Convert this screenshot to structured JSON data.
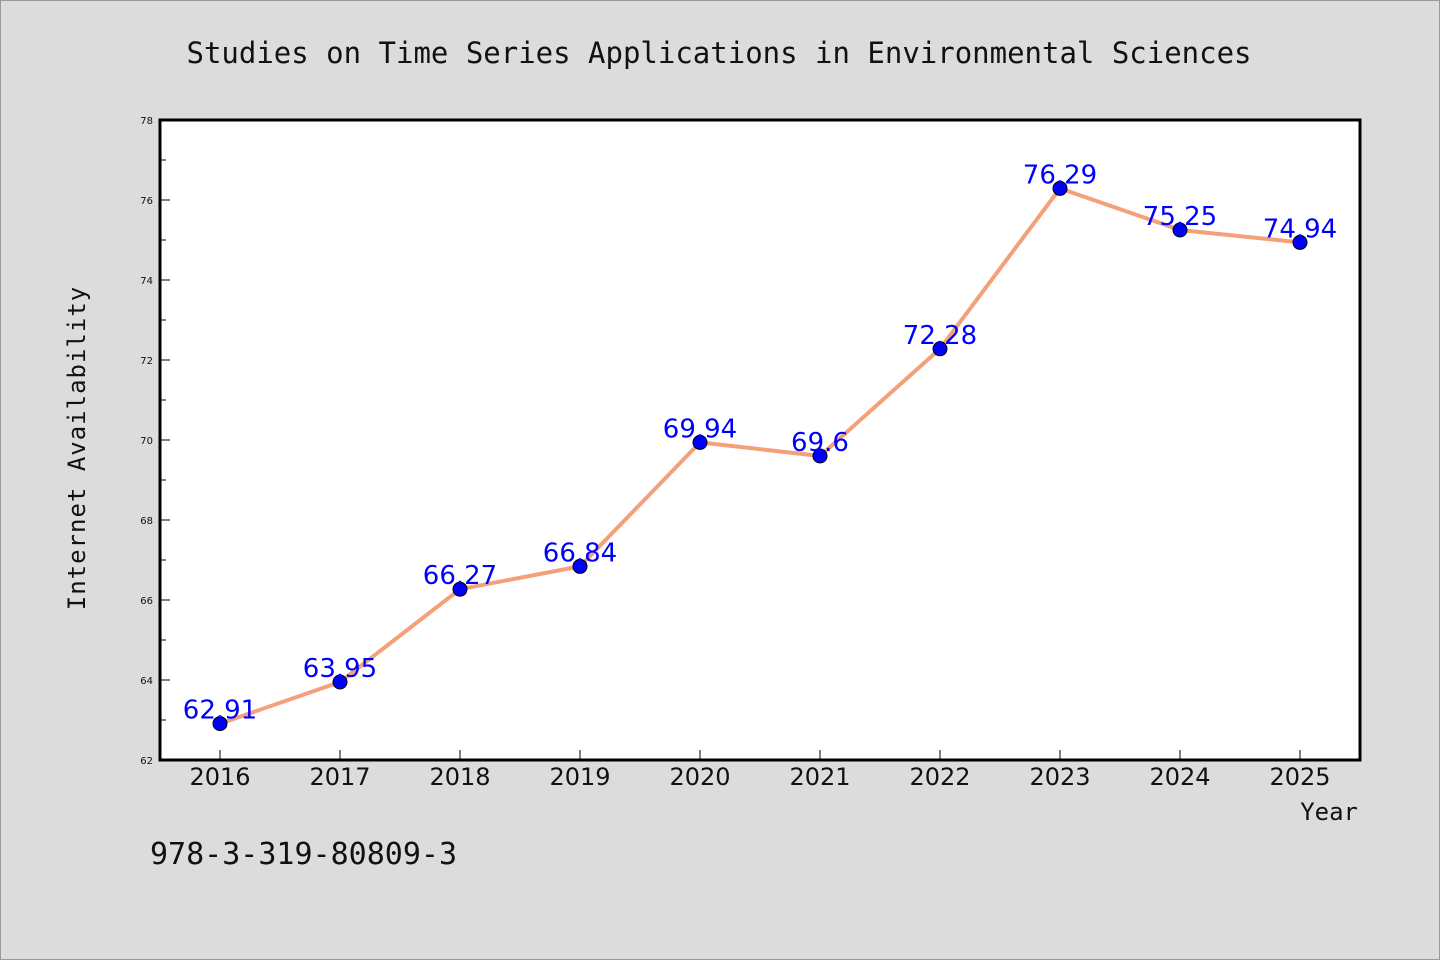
{
  "chart_data": {
    "type": "line",
    "title": "Studies on Time Series Applications in Environmental Sciences",
    "xlabel": "Year",
    "ylabel": "Internet Availability",
    "categories": [
      "2016",
      "2017",
      "2018",
      "2019",
      "2020",
      "2021",
      "2022",
      "2023",
      "2024",
      "2025"
    ],
    "series": [
      {
        "values": [
          62.91,
          63.95,
          66.27,
          66.84,
          69.94,
          69.6,
          72.28,
          76.29,
          75.25,
          74.94
        ],
        "labels": [
          "62.91",
          "63.95",
          "66.27",
          "66.84",
          "69.94",
          "69.6",
          "72.28",
          "76.29",
          "75.25",
          "74.94"
        ]
      }
    ],
    "ylim": [
      62,
      78
    ],
    "yticks": [
      "62",
      "64",
      "66",
      "68",
      "70",
      "72",
      "74",
      "76",
      "78"
    ],
    "grid": false,
    "colors": {
      "line": "#f4a07a",
      "marker": "#0000ff",
      "label": "#0000ff",
      "background": "#dcdcdc",
      "plot_background": "#ffffff"
    }
  },
  "annotation": {
    "isbn": "978-3-319-80809-3"
  }
}
